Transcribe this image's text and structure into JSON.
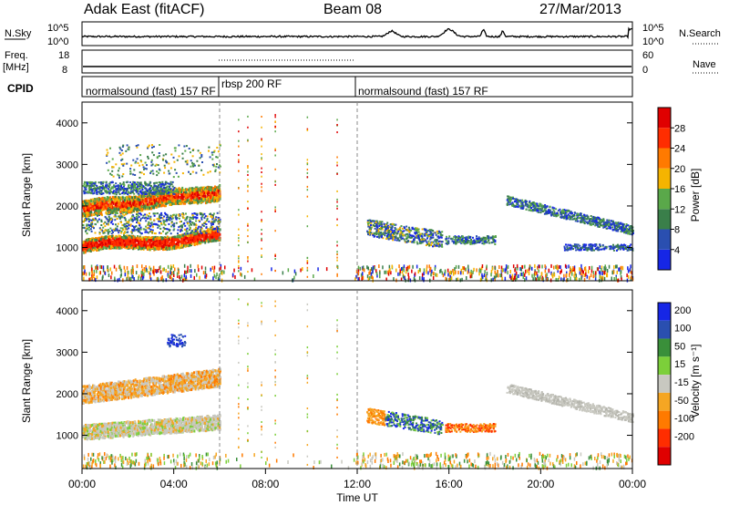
{
  "header": {
    "site": "Adak East (fitACF)",
    "beam": "Beam 08",
    "date": "27/Mar/2013"
  },
  "strips": {
    "nsky": {
      "label": "N.Sky",
      "ticks_left": [
        "10^5",
        "10^0"
      ],
      "ticks_right": [
        "10^5",
        "10^0"
      ],
      "right_label": "N.Search"
    },
    "freq": {
      "label_line1": "Freq.",
      "label_line2": "[MHz]",
      "ticks_left": [
        "18",
        "8"
      ],
      "ticks_right": [
        "60",
        "0"
      ],
      "right_label": "Nave"
    },
    "cpid": {
      "label": "CPID",
      "segments": [
        {
          "text": "normalsound (fast) 157 RF",
          "start_hour": 0,
          "end_hour": 6
        },
        {
          "text": "rbsp 200 RF",
          "start_hour": 6,
          "end_hour": 12
        },
        {
          "text": "normalsound (fast) 157 RF",
          "start_hour": 12,
          "end_hour": 24
        }
      ]
    }
  },
  "axes": {
    "ylabel": "Slant Range [km]",
    "xlabel": "Time UT",
    "xticks": [
      "00:00",
      "04:00",
      "08:00",
      "12:00",
      "16:00",
      "20:00",
      "00:00"
    ],
    "yticks": [
      "1000",
      "2000",
      "3000",
      "4000"
    ]
  },
  "colorbars": {
    "power": {
      "label": "Power [dB]",
      "ticks": [
        "4",
        "8",
        "12",
        "16",
        "20",
        "24",
        "28"
      ],
      "colors": [
        "#1626e6",
        "#2a4fb0",
        "#3a7f4a",
        "#5aa84a",
        "#f5b400",
        "#ff7a00",
        "#ff2d00",
        "#e00000"
      ]
    },
    "velocity": {
      "label": "Velocity [m s⁻¹]",
      "ticks": [
        "200",
        "100",
        "50",
        "15",
        "-15",
        "-50",
        "-100",
        "-200"
      ],
      "colors": [
        "#1626e6",
        "#2a4fb0",
        "#3a8f3a",
        "#7ccf3a",
        "#c8c8c0",
        "#f5a623",
        "#ff7a00",
        "#ff2d00",
        "#e00000"
      ]
    }
  },
  "chart_data": {
    "type": "heatmap",
    "x_range_hours": [
      0,
      24
    ],
    "y_range_km": [
      200,
      4500
    ],
    "power_features": [
      {
        "name": "band-1000",
        "t": [
          0,
          6
        ],
        "range_km": [
          900,
          1400
        ],
        "value_db": 28
      },
      {
        "name": "band-2000",
        "t": [
          0,
          6
        ],
        "range_km": [
          1800,
          2700
        ],
        "value_db": 24
      },
      {
        "name": "band-2400",
        "t": [
          0,
          6
        ],
        "range_km": [
          2300,
          2700
        ],
        "value_db": 12
      },
      {
        "name": "patch-13h",
        "t": [
          12.2,
          15.5
        ],
        "range_km": [
          1100,
          1700
        ],
        "value_db": 12
      },
      {
        "name": "streak-18-24",
        "t": [
          18.5,
          24
        ],
        "range_km": [
          1300,
          2200
        ],
        "value_db": 8
      },
      {
        "name": "streak-20-24",
        "t": [
          21,
          24
        ],
        "range_km": [
          900,
          1100
        ],
        "value_db": 8
      }
    ],
    "velocity_features": [
      {
        "name": "grey-1000",
        "t": [
          0,
          6
        ],
        "range_km": [
          900,
          1400
        ],
        "value_ms": 0
      },
      {
        "name": "orange-2000",
        "t": [
          0,
          6
        ],
        "range_km": [
          1800,
          2700
        ],
        "value_ms": -30
      },
      {
        "name": "green-13h",
        "t": [
          13.5,
          15
        ],
        "range_km": [
          1300,
          1600
        ],
        "value_ms": 50
      },
      {
        "name": "orange-16h",
        "t": [
          16,
          18
        ],
        "range_km": [
          1100,
          1300
        ],
        "value_ms": -60
      },
      {
        "name": "grey-18-24",
        "t": [
          18.5,
          24
        ],
        "range_km": [
          1200,
          2200
        ],
        "value_ms": 0
      }
    ]
  }
}
